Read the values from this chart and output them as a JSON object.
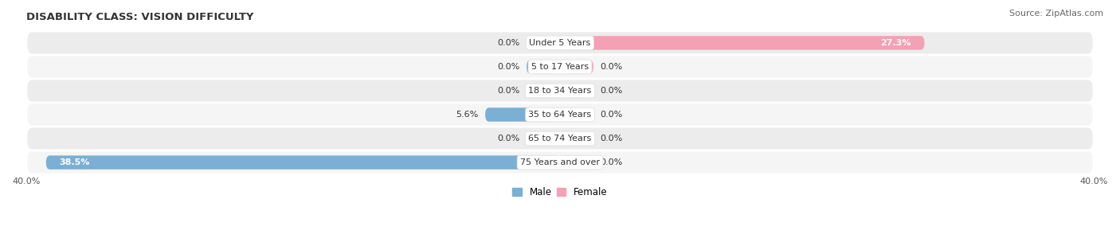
{
  "title": "DISABILITY CLASS: VISION DIFFICULTY",
  "source": "Source: ZipAtlas.com",
  "categories": [
    "Under 5 Years",
    "5 to 17 Years",
    "18 to 34 Years",
    "35 to 64 Years",
    "65 to 74 Years",
    "75 Years and over"
  ],
  "male_values": [
    0.0,
    0.0,
    0.0,
    5.6,
    0.0,
    38.5
  ],
  "female_values": [
    27.3,
    0.0,
    0.0,
    0.0,
    0.0,
    0.0
  ],
  "male_color": "#7bafd4",
  "female_color": "#f4a0b5",
  "max_val": 40.0,
  "title_fontsize": 9.5,
  "source_fontsize": 8,
  "label_fontsize": 8,
  "cat_fontsize": 8,
  "axis_label": "40.0%",
  "background_color": "#ffffff",
  "row_colors": [
    "#ececec",
    "#f5f5f5",
    "#ececec",
    "#f5f5f5",
    "#ececec",
    "#f5f5f5"
  ],
  "stub_val": 2.5
}
